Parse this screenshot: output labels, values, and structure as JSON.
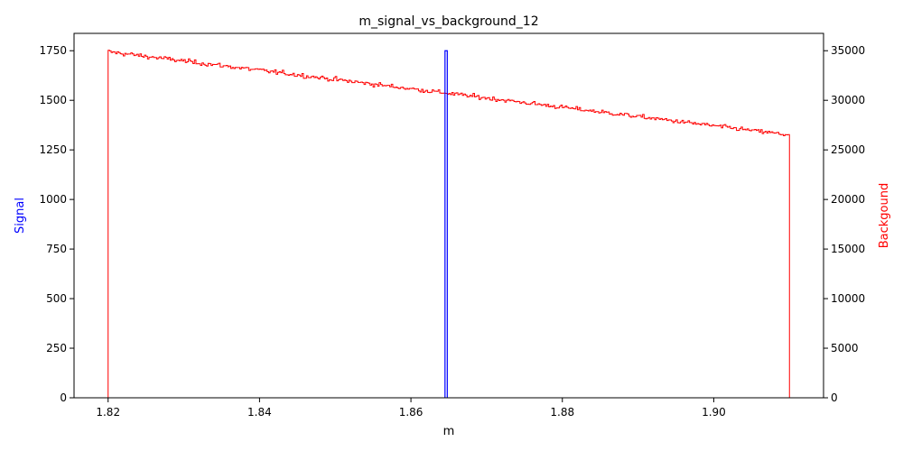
{
  "chart_data": {
    "type": "histogram-dual-axis",
    "title": "m_signal_vs_background_12",
    "xlabel": "m",
    "ylabel_left": "Signal",
    "ylabel_right": "Backgound",
    "xlim": [
      1.8155,
      1.9145
    ],
    "ylim_left": [
      0,
      1837.5
    ],
    "ylim_right": [
      0,
      36750
    ],
    "x_ticks": [
      "1.82",
      "1.84",
      "1.86",
      "1.88",
      "1.90"
    ],
    "x_tick_values": [
      1.82,
      1.84,
      1.86,
      1.88,
      1.9
    ],
    "y_left_ticks": [
      "0",
      "250",
      "500",
      "750",
      "1000",
      "1250",
      "1500",
      "1750"
    ],
    "y_left_tick_values": [
      0,
      250,
      500,
      750,
      1000,
      1250,
      1500,
      1750
    ],
    "y_right_ticks": [
      "0",
      "5000",
      "10000",
      "15000",
      "20000",
      "25000",
      "30000",
      "35000"
    ],
    "y_right_tick_values": [
      0,
      5000,
      10000,
      15000,
      20000,
      25000,
      30000,
      35000
    ],
    "signal": {
      "color": "#0000ff",
      "bin_lo": 1.8645,
      "bin_hi": 1.8648,
      "value": 1750
    },
    "background": {
      "color": "#ff0000",
      "range": [
        1.82,
        1.91
      ],
      "bins": 450,
      "start_value": 34900,
      "end_value": 26500
    },
    "grid": false
  }
}
